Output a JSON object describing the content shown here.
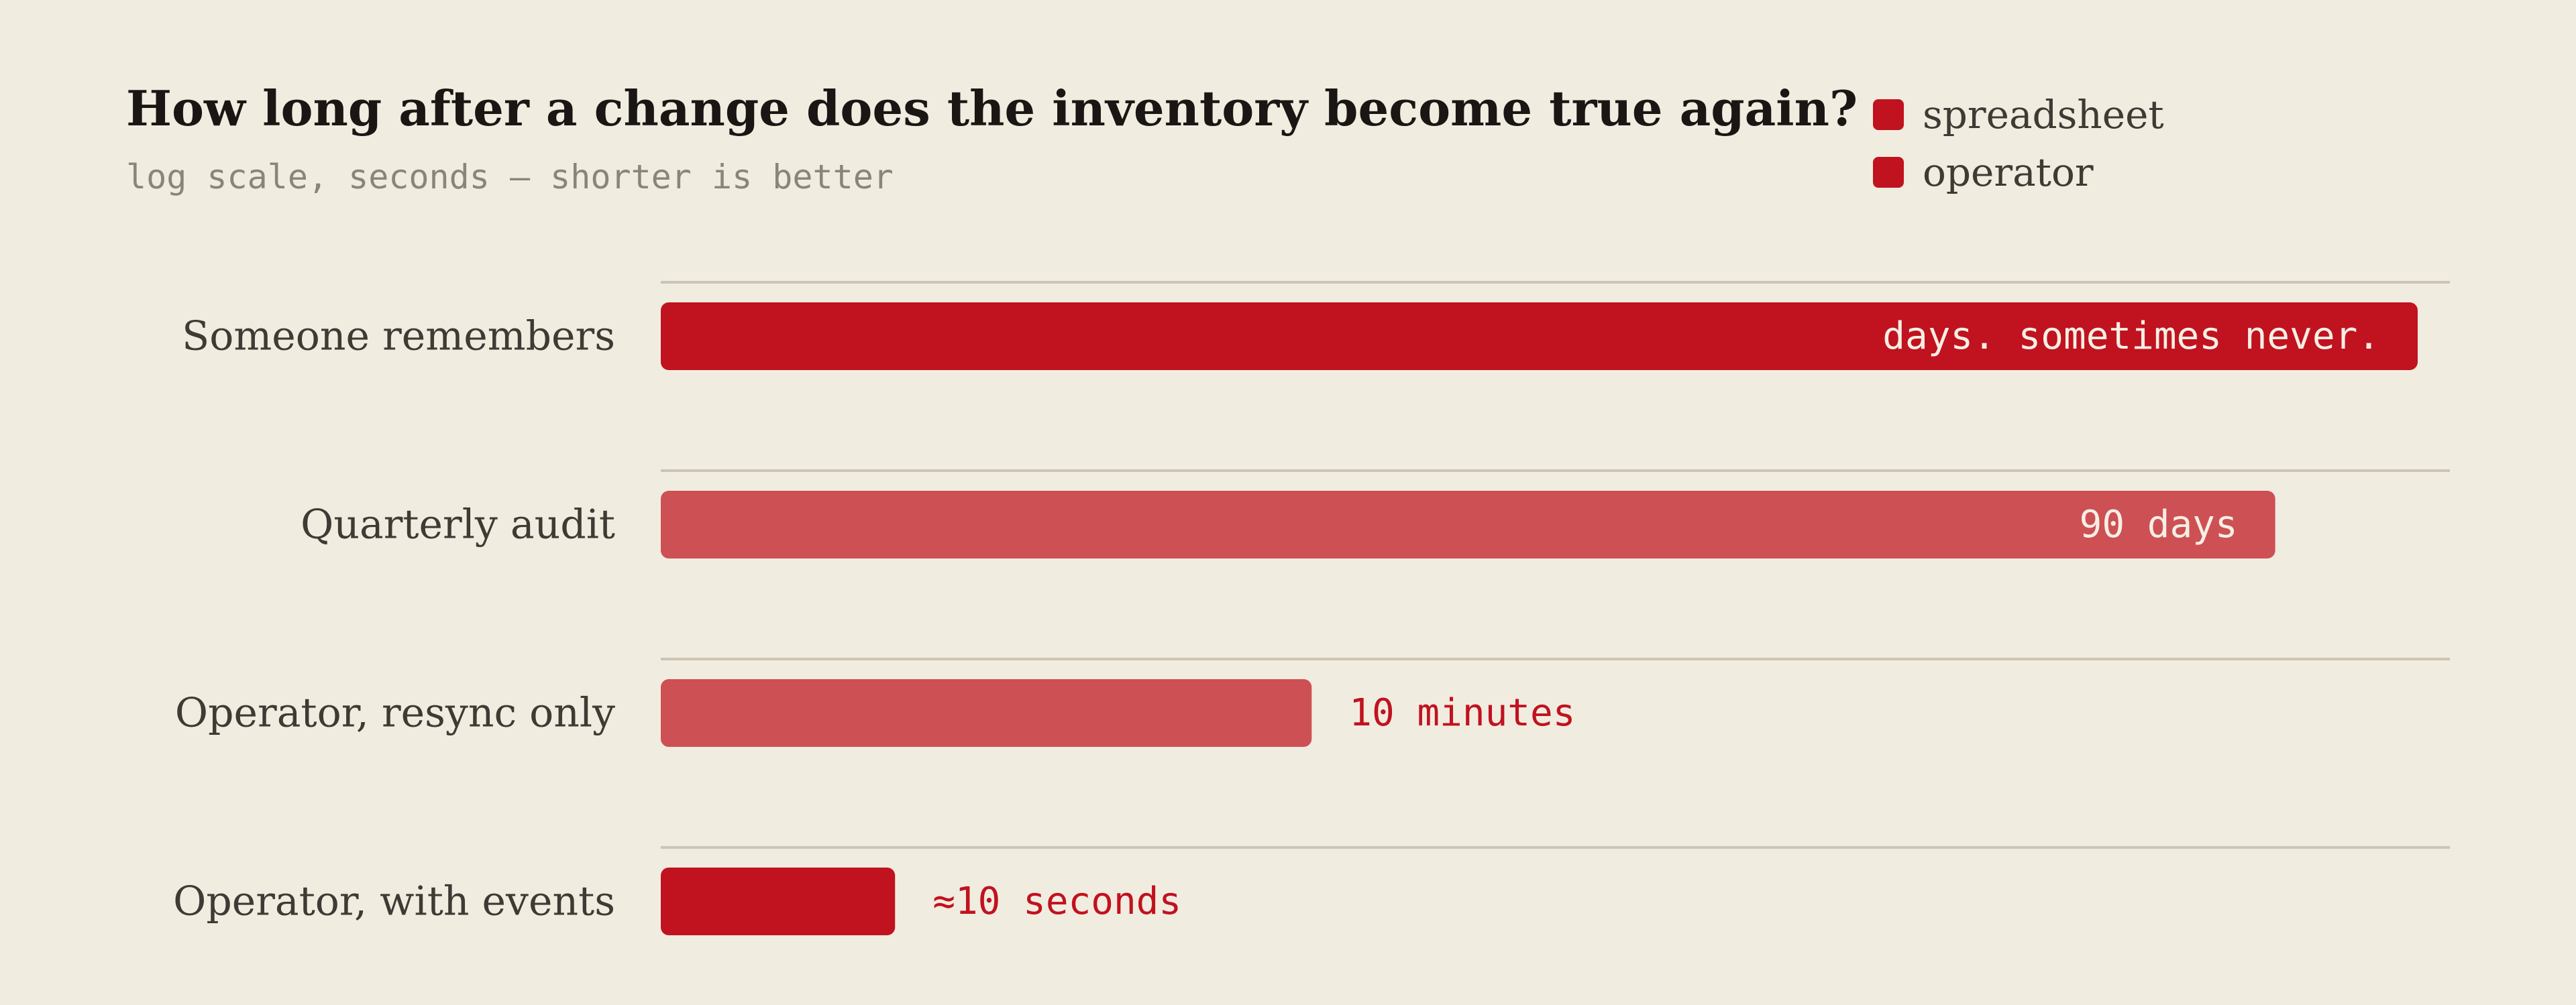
{
  "colors": {
    "background": "#f1ece0",
    "spreadsheet": "#c1121f",
    "operator": "#c1121f",
    "light_bar": "#cd5054",
    "gridline": "#cdc4b4",
    "inside_text": "#f5efe4",
    "outside_text": "#c1121f"
  },
  "chart_data": {
    "type": "bar",
    "orientation": "horizontal",
    "title": "How long after a change does the inventory become true again?",
    "subtitle": "log scale, seconds — shorter is better",
    "scale": "log",
    "unit": "seconds",
    "legend": {
      "placement": "top-right",
      "entries": [
        {
          "name": "spreadsheet",
          "color": "#c1121f"
        },
        {
          "name": "operator",
          "color": "#c1121f"
        }
      ]
    },
    "categories": [
      "Someone remembers",
      "Quarterly audit",
      "Operator, resync only",
      "Operator, with events"
    ],
    "values": [
      31536000,
      7776000,
      600,
      10
    ],
    "value_labels": [
      "days. sometimes never.",
      "90 days",
      "10 minutes",
      "≈10 seconds"
    ],
    "bar_colors": [
      "#c1121f",
      "#cd5054",
      "#cd5054",
      "#c1121f"
    ],
    "label_inside": [
      true,
      true,
      false,
      false
    ],
    "xlim": [
      1,
      31536000
    ],
    "grid": true
  }
}
